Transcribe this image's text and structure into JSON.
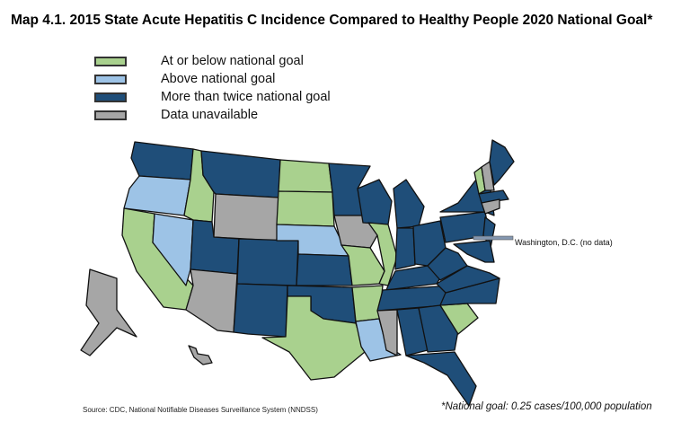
{
  "title": "Map 4.1. 2015 State Acute Hepatitis C Incidence Compared to Healthy People 2020 National Goal*",
  "legend": [
    {
      "key": "below",
      "label": "At or below national goal",
      "color": "#a9d18e"
    },
    {
      "key": "above",
      "label": "Above national goal",
      "color": "#9dc3e6"
    },
    {
      "key": "twice",
      "label": "More than twice national goal",
      "color": "#1f4e79"
    },
    {
      "key": "na",
      "label": "Data unavailable",
      "color": "#a6a6a6"
    }
  ],
  "states": {
    "WA": "twice",
    "OR": "above",
    "CA": "below",
    "NV": "above",
    "ID": "below",
    "MT": "twice",
    "WY": "na",
    "UT": "twice",
    "AZ": "na",
    "CO": "twice",
    "NM": "twice",
    "ND": "below",
    "SD": "below",
    "NE": "above",
    "KS": "twice",
    "OK": "twice",
    "TX": "below",
    "MN": "twice",
    "IA": "na",
    "MO": "below",
    "AR": "below",
    "LA": "above",
    "WI": "twice",
    "IL": "below",
    "MI": "twice",
    "IN": "twice",
    "OH": "twice",
    "KY": "twice",
    "TN": "twice",
    "MS": "na",
    "AL": "twice",
    "GA": "twice",
    "FL": "twice",
    "SC": "below",
    "NC": "twice",
    "VA": "twice",
    "WV": "twice",
    "PA": "twice",
    "NY": "twice",
    "NJ": "twice",
    "MD": "twice",
    "VT": "below",
    "NH": "na",
    "ME": "twice",
    "MA": "twice",
    "CT": "na",
    "AK": "na",
    "HI": "na"
  },
  "dc_label": "Washington, D.C. (no data)",
  "source": "Source: CDC, National Notifiable Diseases Surveillance System (NNDSS)",
  "footnote": "*National goal: 0.25 cases/100,000 population"
}
